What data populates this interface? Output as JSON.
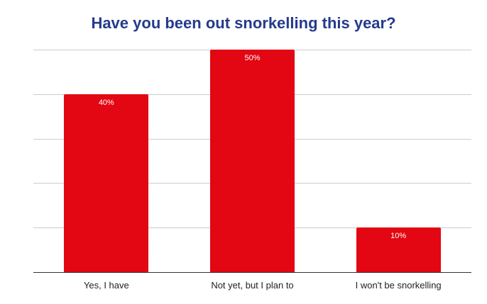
{
  "chart_data": {
    "type": "bar",
    "title": "Have you been out snorkelling this year?",
    "categories": [
      "Yes, I have",
      "Not yet, but I plan to",
      "I won't be snorkelling"
    ],
    "values": [
      40,
      50,
      10
    ],
    "value_labels": [
      "40%",
      "50%",
      "10%"
    ],
    "xlabel": "",
    "ylabel": "",
    "ylim": [
      0,
      50
    ],
    "yticks_hidden": true,
    "grid": true,
    "gridlines": [
      0,
      10,
      20,
      30,
      40,
      50
    ],
    "legend": "none",
    "bar_color": "#e30613",
    "title_color": "#243a8c"
  }
}
